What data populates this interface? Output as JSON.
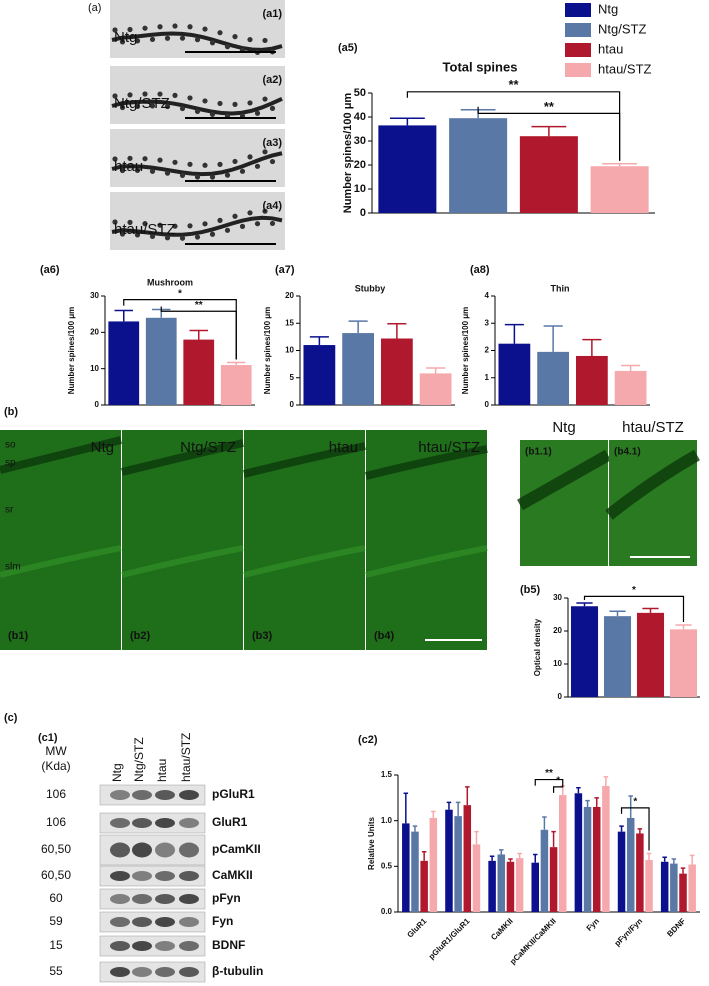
{
  "figure_a": {
    "label": "(a)",
    "images": [
      {
        "label": "(a1)",
        "group": "Ntg"
      },
      {
        "label": "(a2)",
        "group": "Ntg/STZ"
      },
      {
        "label": "(a3)",
        "group": "htau"
      },
      {
        "label": "(a4)",
        "group": "htau/STZ"
      }
    ]
  },
  "figure_b": {
    "label": "(b)",
    "layers": [
      "so",
      "sp",
      "sr",
      "slm"
    ],
    "images": [
      {
        "label": "(b1)",
        "group": "Ntg"
      },
      {
        "label": "(b2)",
        "group": "Ntg/STZ"
      },
      {
        "label": "(b3)",
        "group": "htau"
      },
      {
        "label": "(b4)",
        "group": "htau/STZ"
      }
    ],
    "zoom": [
      {
        "label": "(b1.1)",
        "group": "Ntg"
      },
      {
        "label": "(b4.1)",
        "group": "htau/STZ"
      }
    ]
  },
  "figure_c": {
    "label": "(c)",
    "blot_label": "(c1)",
    "mw_header": [
      "MW",
      "(Kda)"
    ],
    "lanes": [
      "Ntg",
      "Ntg/STZ",
      "htau",
      "htau/STZ"
    ],
    "rows": [
      {
        "mw": "106",
        "protein": "pGluR1"
      },
      {
        "mw": "106",
        "protein": "GluR1"
      },
      {
        "mw": "60,50",
        "protein": "pCamKII"
      },
      {
        "mw": "60,50",
        "protein": "CaMKII"
      },
      {
        "mw": "60",
        "protein": "pFyn"
      },
      {
        "mw": "59",
        "protein": "Fyn"
      },
      {
        "mw": "15",
        "protein": "BDNF"
      },
      {
        "mw": "55",
        "protein": "β-tubulin"
      }
    ]
  },
  "chart_data": [
    {
      "type": "bar",
      "label": "(a5)",
      "title": "Total spines",
      "ylabel": "Number spines/100 μm",
      "categories": [
        null
      ],
      "ylim": [
        0,
        50
      ],
      "yticks": [
        0,
        10,
        20,
        30,
        40,
        50
      ],
      "annotations": [
        "**",
        "**"
      ],
      "series": [
        {
          "name": "Ntg",
          "color": "#0b108c",
          "values": [
            36.5
          ],
          "errors": [
            3
          ]
        },
        {
          "name": "Ntg/STZ",
          "color": "#5a78a6",
          "values": [
            39.5
          ],
          "errors": [
            3.5
          ]
        },
        {
          "name": "htau",
          "color": "#b0182d",
          "values": [
            32
          ],
          "errors": [
            4
          ]
        },
        {
          "name": "htau/STZ",
          "color": "#f6a9ad",
          "values": [
            19.5
          ],
          "errors": [
            1
          ]
        }
      ]
    },
    {
      "type": "bar",
      "label": "(a6)",
      "title": "Mushroom",
      "ylabel": "Number spines/100 μm",
      "categories": [
        null
      ],
      "ylim": [
        0,
        30
      ],
      "yticks": [
        0,
        10,
        20,
        30
      ],
      "annotations": [
        "*",
        "**"
      ],
      "series": [
        {
          "color": "#0b108c",
          "values": [
            23
          ],
          "errors": [
            3
          ]
        },
        {
          "color": "#5a78a6",
          "values": [
            24
          ],
          "errors": [
            2.3
          ]
        },
        {
          "color": "#b0182d",
          "values": [
            18
          ],
          "errors": [
            2.5
          ]
        },
        {
          "color": "#f6a9ad",
          "values": [
            11
          ],
          "errors": [
            0.7
          ]
        }
      ]
    },
    {
      "type": "bar",
      "label": "(a7)",
      "title": "Stubby",
      "ylabel": "Number spines/100 μm",
      "categories": [
        null
      ],
      "ylim": [
        0,
        20
      ],
      "yticks": [
        0,
        5,
        10,
        15,
        20
      ],
      "series": [
        {
          "color": "#0b108c",
          "values": [
            11
          ],
          "errors": [
            1.5
          ]
        },
        {
          "color": "#5a78a6",
          "values": [
            13.2
          ],
          "errors": [
            2.2
          ]
        },
        {
          "color": "#b0182d",
          "values": [
            12.2
          ],
          "errors": [
            2.7
          ]
        },
        {
          "color": "#f6a9ad",
          "values": [
            5.8
          ],
          "errors": [
            1
          ]
        }
      ]
    },
    {
      "type": "bar",
      "label": "(a8)",
      "title": "Thin",
      "ylabel": "Number spines/100 μm",
      "categories": [
        null
      ],
      "ylim": [
        0,
        4
      ],
      "yticks": [
        0,
        1,
        2,
        3,
        4
      ],
      "series": [
        {
          "color": "#0b108c",
          "values": [
            2.25
          ],
          "errors": [
            0.7
          ]
        },
        {
          "color": "#5a78a6",
          "values": [
            1.95
          ],
          "errors": [
            0.95
          ]
        },
        {
          "color": "#b0182d",
          "values": [
            1.8
          ],
          "errors": [
            0.6
          ]
        },
        {
          "color": "#f6a9ad",
          "values": [
            1.25
          ],
          "errors": [
            0.2
          ]
        }
      ]
    },
    {
      "type": "bar",
      "label": "(b5)",
      "ylabel": "Optical density",
      "categories": [
        null
      ],
      "ylim": [
        0,
        30
      ],
      "yticks": [
        0,
        10,
        20,
        30
      ],
      "annotations": [
        "*"
      ],
      "series": [
        {
          "color": "#0b108c",
          "values": [
            27.5
          ],
          "errors": [
            1
          ]
        },
        {
          "color": "#5a78a6",
          "values": [
            24.5
          ],
          "errors": [
            1.5
          ]
        },
        {
          "color": "#b0182d",
          "values": [
            25.5
          ],
          "errors": [
            1.3
          ]
        },
        {
          "color": "#f6a9ad",
          "values": [
            20.5
          ],
          "errors": [
            1.3
          ]
        }
      ]
    },
    {
      "type": "bar",
      "label": "(c2)",
      "ylabel": "Relative Units",
      "categories": [
        "GluR1",
        "pGluR1/GluR1",
        "CaMKII",
        "pCaMKII/CaMKII",
        "Fyn",
        "pFyn/Fyn",
        "BDNF"
      ],
      "ylim": [
        0,
        1.5
      ],
      "yticks": [
        {
          "value": 0,
          "label": "0.0"
        },
        0.5,
        {
          "value": 1,
          "label": "1.0"
        },
        1.5
      ],
      "annotations": [
        "**",
        "*",
        "*"
      ],
      "series": [
        {
          "color": "#0b108c",
          "values": [
            0.97,
            1.12,
            0.56,
            0.54,
            1.3,
            0.88,
            0.55
          ],
          "errors": [
            0.33,
            0.08,
            0.05,
            0.09,
            0.06,
            0.06,
            0.05
          ]
        },
        {
          "color": "#5a78a6",
          "values": [
            0.88,
            1.05,
            0.63,
            0.9,
            1.15,
            1.03,
            0.53
          ],
          "errors": [
            0.06,
            0.15,
            0.05,
            0.14,
            0.07,
            0.24,
            0.05
          ]
        },
        {
          "color": "#b0182d",
          "values": [
            0.56,
            1.17,
            0.55,
            0.71,
            1.15,
            0.86,
            0.42
          ],
          "errors": [
            0.1,
            0.2,
            0.03,
            0.17,
            0.1,
            0.05,
            0.06
          ]
        },
        {
          "color": "#f6a9ad",
          "values": [
            1.03,
            0.74,
            0.59,
            1.28,
            1.38,
            0.57,
            0.52
          ],
          "errors": [
            0.07,
            0.14,
            0.05,
            0.1,
            0.1,
            0.07,
            0.1
          ]
        }
      ]
    }
  ]
}
